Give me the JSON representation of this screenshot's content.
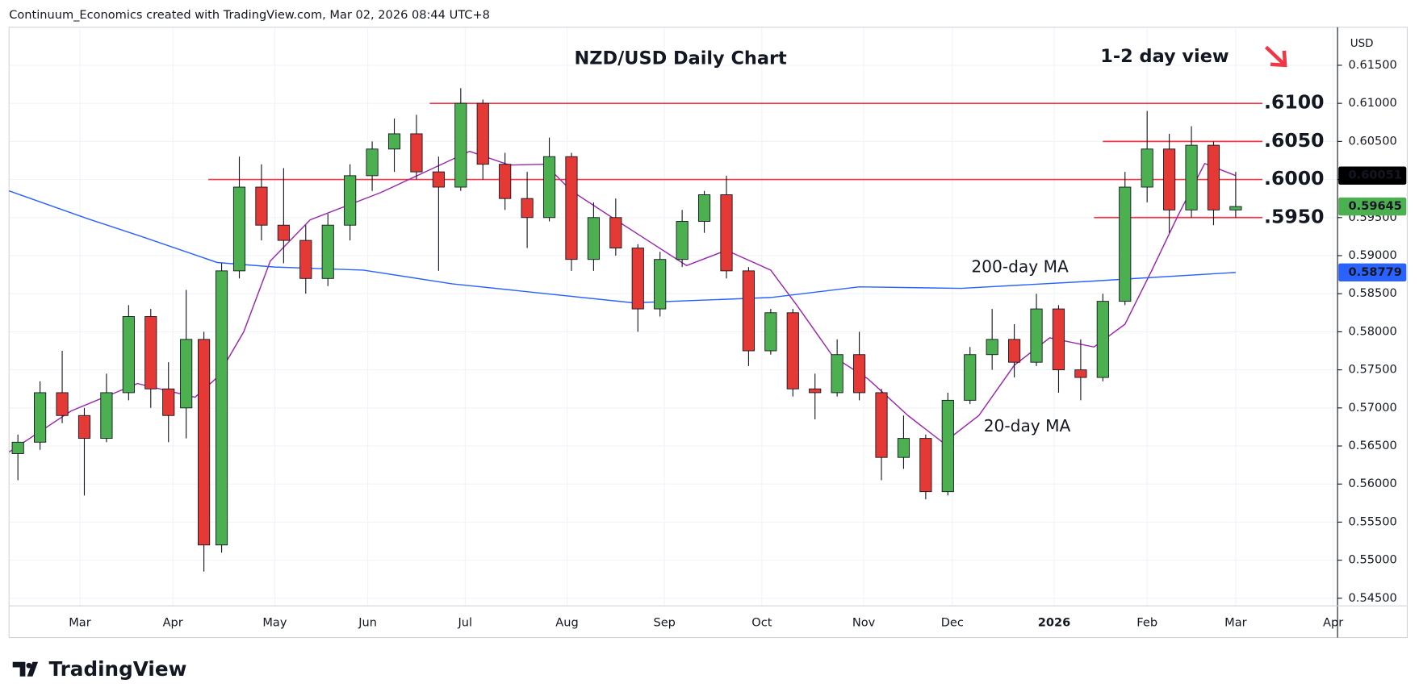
{
  "header": "Continuum_Economics created with TradingView.com, Mar 02, 2026 08:44 UTC+8",
  "logo": "TradingView",
  "chart_data": {
    "type": "candlestick",
    "title": "NZD/USD Daily Chart",
    "annotation": "1-2 day view",
    "currency": "USD",
    "up_color": "#4caf50",
    "down_color": "#e53935",
    "grid": true,
    "x": [
      2,
      7,
      12,
      17,
      22,
      27,
      32,
      36,
      40,
      44,
      48,
      52,
      57,
      62,
      67,
      72,
      77,
      82,
      87,
      92,
      97,
      102,
      107,
      112,
      117,
      122,
      127,
      132,
      137,
      142,
      147,
      152,
      157,
      162,
      167,
      172,
      177,
      182,
      187,
      192,
      197,
      202,
      207,
      212,
      217,
      222,
      227,
      232,
      237,
      242,
      247,
      252,
      257,
      262,
      267,
      272,
      277
    ],
    "open": [
      0.564,
      0.5655,
      0.572,
      0.569,
      0.566,
      0.572,
      0.582,
      0.5725,
      0.57,
      0.579,
      0.552,
      0.588,
      0.599,
      0.594,
      0.592,
      0.587,
      0.594,
      0.6005,
      0.604,
      0.606,
      0.601,
      0.599,
      0.61,
      0.602,
      0.5975,
      0.595,
      0.603,
      0.5895,
      0.595,
      0.591,
      0.583,
      0.5895,
      0.5945,
      0.598,
      0.588,
      0.5775,
      0.5825,
      0.5725,
      0.572,
      0.577,
      0.572,
      0.5635,
      0.566,
      0.559,
      0.571,
      0.577,
      0.579,
      0.576,
      0.583,
      0.575,
      0.574,
      0.584,
      0.599,
      0.604,
      0.596,
      0.6045,
      0.596
    ],
    "high": [
      0.5665,
      0.5735,
      0.5775,
      0.57,
      0.5745,
      0.5835,
      0.583,
      0.576,
      0.5855,
      0.58,
      0.589,
      0.603,
      0.602,
      0.6015,
      0.594,
      0.5955,
      0.602,
      0.605,
      0.608,
      0.6085,
      0.603,
      0.612,
      0.6105,
      0.6035,
      0.601,
      0.6055,
      0.6035,
      0.597,
      0.5975,
      0.5915,
      0.5905,
      0.596,
      0.5985,
      0.6005,
      0.5885,
      0.583,
      0.583,
      0.5745,
      0.579,
      0.58,
      0.5725,
      0.569,
      0.5665,
      0.572,
      0.578,
      0.583,
      0.581,
      0.585,
      0.5835,
      0.579,
      0.585,
      0.601,
      0.609,
      0.606,
      0.607,
      0.605,
      0.601
    ],
    "low": [
      0.5605,
      0.5645,
      0.568,
      0.5585,
      0.5655,
      0.571,
      0.57,
      0.5655,
      0.566,
      0.5485,
      0.551,
      0.587,
      0.592,
      0.589,
      0.585,
      0.586,
      0.592,
      0.5985,
      0.601,
      0.6,
      0.588,
      0.5985,
      0.6,
      0.596,
      0.591,
      0.5945,
      0.588,
      0.588,
      0.59,
      0.58,
      0.582,
      0.5885,
      0.593,
      0.587,
      0.5755,
      0.577,
      0.5715,
      0.5685,
      0.5715,
      0.571,
      0.5605,
      0.562,
      0.558,
      0.5585,
      0.5705,
      0.575,
      0.574,
      0.5755,
      0.572,
      0.571,
      0.5735,
      0.5835,
      0.597,
      0.593,
      0.595,
      0.594,
      0.595
    ],
    "close": [
      0.5655,
      0.572,
      0.569,
      0.566,
      0.572,
      0.582,
      0.5725,
      0.569,
      0.579,
      0.552,
      0.588,
      0.599,
      0.594,
      0.592,
      0.587,
      0.594,
      0.6005,
      0.604,
      0.606,
      0.601,
      0.599,
      0.61,
      0.602,
      0.5975,
      0.595,
      0.603,
      0.5895,
      0.595,
      0.591,
      0.583,
      0.5895,
      0.5945,
      0.598,
      0.588,
      0.5775,
      0.5825,
      0.5725,
      0.572,
      0.577,
      0.572,
      0.5635,
      0.566,
      0.559,
      0.571,
      0.577,
      0.579,
      0.576,
      0.583,
      0.575,
      0.574,
      0.584,
      0.599,
      0.604,
      0.596,
      0.6045,
      0.596,
      0.59645
    ],
    "series": [
      {
        "name": "20-day MA",
        "color": "#9c27b0",
        "x": [
          0,
          14,
          29,
          42,
          47,
          53,
          59,
          68,
          84,
          94,
          104,
          113,
          121,
          127,
          137,
          145,
          153,
          162,
          172,
          178,
          186,
          194,
          203,
          211,
          219,
          227,
          235,
          245,
          252,
          258,
          264,
          270,
          277
        ],
        "values": [
          0.5642,
          0.5696,
          0.5732,
          0.5714,
          0.574,
          0.58,
          0.5893,
          0.5947,
          0.5983,
          0.601,
          0.6037,
          0.6019,
          0.602,
          0.5985,
          0.5947,
          0.5917,
          0.5887,
          0.5907,
          0.5881,
          0.5834,
          0.5768,
          0.5738,
          0.569,
          0.5654,
          0.569,
          0.5756,
          0.5792,
          0.578,
          0.581,
          0.588,
          0.5953,
          0.6021,
          0.60051
        ],
        "label_color": "#000000"
      },
      {
        "name": "200-day MA",
        "color": "#2962ff",
        "x": [
          0,
          18,
          30,
          47,
          60,
          80,
          100,
          141,
          172,
          192,
          215,
          243,
          277
        ],
        "values": [
          0.5985,
          0.5948,
          0.5925,
          0.5891,
          0.5885,
          0.5881,
          0.5863,
          0.5838,
          0.5845,
          0.5859,
          0.5857,
          0.5866,
          0.58779
        ],
        "label_color": "#2962ff"
      }
    ],
    "levels": [
      {
        "value": 0.61,
        "label": ".6100",
        "x_start": 95
      },
      {
        "value": 0.605,
        "label": ".6050",
        "x_start": 247
      },
      {
        "value": 0.6,
        "label": ".6000",
        "x_start": 45
      },
      {
        "value": 0.595,
        "label": ".5950",
        "x_start": 245
      }
    ],
    "level_color": "#f23645",
    "xlim": [
      0,
      300
    ],
    "xticks": [
      {
        "value": 16,
        "label": "Mar"
      },
      {
        "value": 37,
        "label": "Apr"
      },
      {
        "value": 60,
        "label": "May"
      },
      {
        "value": 81,
        "label": "Jun"
      },
      {
        "value": 103,
        "label": "Jul"
      },
      {
        "value": 126,
        "label": "Aug"
      },
      {
        "value": 148,
        "label": "Sep"
      },
      {
        "value": 170,
        "label": "Oct"
      },
      {
        "value": 193,
        "label": "Nov"
      },
      {
        "value": 213,
        "label": "Dec"
      },
      {
        "value": 236,
        "label": "2026"
      },
      {
        "value": 257,
        "label": "Feb"
      },
      {
        "value": 277,
        "label": "Mar"
      },
      {
        "value": 299,
        "label": "Apr"
      }
    ],
    "ylim": [
      0.544,
      0.62
    ],
    "yticks": [
      {
        "value": 0.545,
        "label": "0.54500"
      },
      {
        "value": 0.55,
        "label": "0.55000"
      },
      {
        "value": 0.555,
        "label": "0.55500"
      },
      {
        "value": 0.56,
        "label": "0.56000"
      },
      {
        "value": 0.565,
        "label": "0.56500"
      },
      {
        "value": 0.57,
        "label": "0.57000"
      },
      {
        "value": 0.575,
        "label": "0.57500"
      },
      {
        "value": 0.58,
        "label": "0.58000"
      },
      {
        "value": 0.585,
        "label": "0.58500"
      },
      {
        "value": 0.59,
        "label": "0.59000"
      },
      {
        "value": 0.595,
        "label": "0.59500"
      },
      {
        "value": 0.6,
        "label": "0.60000"
      },
      {
        "value": 0.605,
        "label": "0.60500"
      },
      {
        "value": 0.61,
        "label": "0.61000"
      },
      {
        "value": 0.615,
        "label": "0.61500"
      }
    ]
  }
}
